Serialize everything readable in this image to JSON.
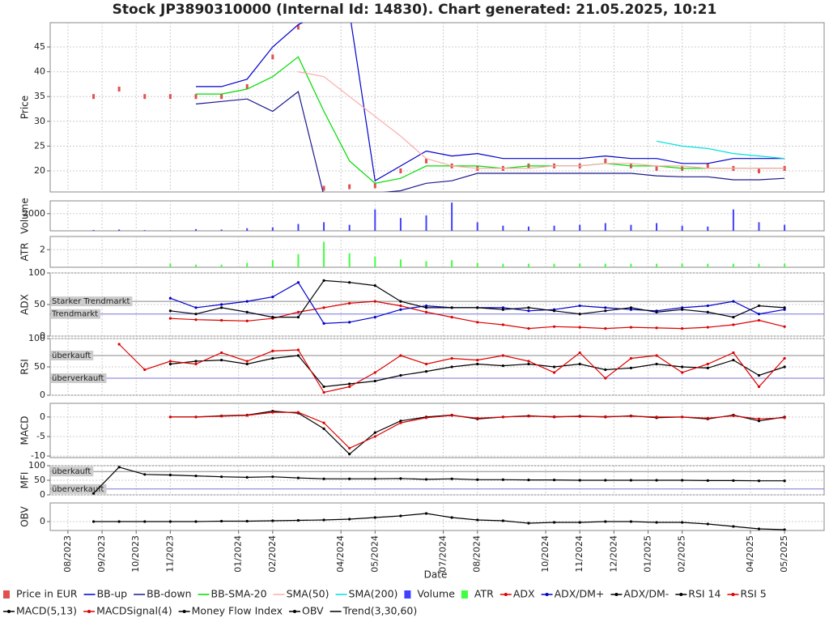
{
  "chart_data": {
    "type": "stock-panels",
    "title": "Stock JP3890310000 (Internal Id: 14830). Chart generated: 21.05.2025, 10:21",
    "x_label": "Date",
    "x": [
      7,
      7.75,
      8.5,
      9.25,
      10,
      10.75,
      11.5,
      12.25,
      13,
      13.75,
      14.5,
      15.25,
      16,
      16.75,
      17.5,
      18.25,
      19,
      19.75,
      20.5,
      21.25,
      22,
      22.75,
      23.5,
      24.25,
      25,
      25.75,
      26.5,
      27.25,
      28
    ],
    "xlim": [
      6.48,
      29.16
    ],
    "xticks": [
      {
        "value": 7,
        "label": "08/2023"
      },
      {
        "value": 8,
        "label": "09/2023"
      },
      {
        "value": 9,
        "label": "10/2023"
      },
      {
        "value": 10,
        "label": "11/2023"
      },
      {
        "value": 12,
        "label": "01/2024"
      },
      {
        "value": 13,
        "label": "02/2024"
      },
      {
        "value": 15,
        "label": "04/2024"
      },
      {
        "value": 16,
        "label": "05/2024"
      },
      {
        "value": 18,
        "label": "07/2024"
      },
      {
        "value": 19,
        "label": "08/2024"
      },
      {
        "value": 21,
        "label": "10/2024"
      },
      {
        "value": 22,
        "label": "11/2024"
      },
      {
        "value": 23,
        "label": "12/2024"
      },
      {
        "value": 24,
        "label": "01/2025"
      },
      {
        "value": 25,
        "label": "02/2025"
      },
      {
        "value": 27,
        "label": "04/2025"
      },
      {
        "value": 28,
        "label": "05/2025"
      }
    ],
    "grid": true,
    "panels": [
      {
        "y_label": "Price",
        "ylim": [
          15.75,
          49.9
        ],
        "yticks": [
          20,
          25,
          30,
          35,
          40,
          45
        ],
        "series": [
          {
            "name": "Price in EUR",
            "type": "scatter",
            "color": "#e05050",
            "values": [
              null,
              35,
              36.5,
              35,
              35,
              35,
              35,
              37,
              43,
              49,
              16.5,
              16.8,
              17,
              20,
              22,
              21,
              20.5,
              20.5,
              21,
              21,
              21,
              22,
              21,
              20.5,
              20.5,
              21,
              20.5,
              20,
              20.5
            ]
          },
          {
            "name": "BB-up",
            "type": "line",
            "color": "#0000cc",
            "values": [
              null,
              null,
              null,
              null,
              null,
              37,
              37,
              38.5,
              45,
              49.5,
              52,
              52,
              18,
              21,
              24,
              23,
              23.5,
              22.5,
              22.5,
              22.5,
              22.5,
              23,
              22.5,
              22.5,
              21.5,
              21.5,
              22.5,
              22.5,
              22.5
            ]
          },
          {
            "name": "BB-down",
            "type": "line",
            "color": "#1a1a8c",
            "values": [
              null,
              null,
              null,
              null,
              null,
              33.5,
              34,
              34.5,
              32,
              36,
              15,
              12,
              15.5,
              16,
              17.5,
              18,
              19.5,
              19.5,
              19.5,
              19.5,
              19.5,
              19.5,
              19.5,
              19,
              18.8,
              18.8,
              18.2,
              18.2,
              18.5
            ]
          },
          {
            "name": "BB-SMA-20",
            "type": "line",
            "color": "#00dd00",
            "values": [
              null,
              null,
              null,
              null,
              null,
              35.5,
              35.5,
              36.5,
              39,
              43,
              32,
              22,
              17.5,
              18.5,
              21,
              21,
              21,
              20.5,
              21,
              21,
              21,
              21.5,
              21,
              21,
              20.5,
              20.5,
              20.5,
              20.5,
              20.5
            ]
          },
          {
            "name": "SMA(50)",
            "type": "line",
            "color": "#ffaaaa",
            "values": [
              null,
              null,
              null,
              null,
              null,
              null,
              null,
              null,
              null,
              40,
              39,
              35,
              31,
              27,
              22.5,
              21,
              20.5,
              20.5,
              20.5,
              21,
              21,
              21.5,
              21.5,
              21,
              21,
              20.5,
              20.5,
              20.5,
              20.5
            ]
          },
          {
            "name": "SMA(200)",
            "type": "line",
            "color": "#00e0e0",
            "values": [
              null,
              null,
              null,
              null,
              null,
              null,
              null,
              null,
              null,
              null,
              null,
              null,
              null,
              null,
              null,
              null,
              null,
              null,
              null,
              null,
              null,
              null,
              null,
              26,
              25,
              24.5,
              23.5,
              23,
              22.5
            ]
          }
        ]
      },
      {
        "y_label": "Volume",
        "ylim": [
          0,
          3500
        ],
        "yticks": [
          2000
        ],
        "series": [
          {
            "name": "Volume",
            "type": "bar",
            "color": "#4040ff",
            "values": [
              null,
              100,
              150,
              80,
              50,
              200,
              150,
              300,
              400,
              800,
              1000,
              700,
              2500,
              1500,
              1800,
              3300,
              1000,
              600,
              500,
              600,
              700,
              900,
              700,
              900,
              600,
              500,
              2500,
              1000,
              700
            ]
          }
        ]
      },
      {
        "y_label": "ATR",
        "ylim": [
          0,
          3.5
        ],
        "yticks": [
          2
        ],
        "series": [
          {
            "name": "ATR",
            "type": "bar",
            "color": "#40ff40",
            "values": [
              null,
              null,
              null,
              null,
              0.4,
              0.3,
              0.3,
              0.5,
              0.8,
              1.5,
              2.9,
              1.6,
              1.2,
              0.9,
              0.7,
              0.8,
              0.5,
              0.4,
              0.4,
              0.4,
              0.4,
              0.4,
              0.4,
              0.4,
              0.4,
              0.4,
              0.4,
              0.4,
              0.4
            ]
          }
        ]
      },
      {
        "y_label": "ADX",
        "ylim": [
          0,
          100
        ],
        "yticks": [
          0,
          50,
          100
        ],
        "ref_lines": [
          {
            "value": 55,
            "label": "Starker Trendmarkt"
          },
          {
            "value": 35,
            "label": "Trendmarkt"
          }
        ],
        "series": [
          {
            "name": "ADX",
            "type": "line",
            "markers": true,
            "color": "#dd0000",
            "values": [
              null,
              null,
              null,
              null,
              28,
              26,
              25,
              24,
              28,
              38,
              45,
              52,
              55,
              48,
              38,
              30,
              22,
              18,
              12,
              15,
              14,
              12,
              14,
              13,
              12,
              14,
              18,
              25,
              15
            ]
          },
          {
            "name": "ADX/DM+",
            "type": "line",
            "markers": true,
            "color": "#0000cc",
            "values": [
              null,
              null,
              null,
              null,
              60,
              45,
              50,
              55,
              62,
              85,
              20,
              22,
              30,
              42,
              48,
              45,
              45,
              45,
              40,
              42,
              48,
              45,
              42,
              40,
              45,
              48,
              55,
              35,
              42
            ]
          },
          {
            "name": "ADX/DM-",
            "type": "line",
            "markers": true,
            "color": "#000000",
            "values": [
              null,
              null,
              null,
              null,
              40,
              35,
              45,
              38,
              30,
              30,
              88,
              85,
              80,
              55,
              45,
              45,
              45,
              42,
              45,
              40,
              35,
              40,
              45,
              38,
              42,
              38,
              30,
              48,
              45
            ]
          }
        ]
      },
      {
        "y_label": "RSI",
        "ylim": [
          0,
          100
        ],
        "yticks": [
          0,
          50,
          100
        ],
        "ref_lines": [
          {
            "value": 70,
            "label": "überkauft"
          },
          {
            "value": 30,
            "label": "überverkauft"
          }
        ],
        "series": [
          {
            "name": "RSI 14",
            "type": "line",
            "markers": true,
            "color": "#000000",
            "values": [
              null,
              null,
              null,
              null,
              55,
              60,
              62,
              55,
              65,
              70,
              15,
              20,
              25,
              35,
              42,
              50,
              55,
              52,
              55,
              50,
              55,
              45,
              48,
              55,
              50,
              48,
              62,
              35,
              50
            ]
          },
          {
            "name": "RSI 5",
            "type": "line",
            "markers": true,
            "color": "#dd0000",
            "values": [
              null,
              null,
              90,
              45,
              60,
              55,
              75,
              60,
              78,
              80,
              5,
              15,
              40,
              70,
              55,
              65,
              62,
              70,
              60,
              40,
              75,
              30,
              65,
              70,
              40,
              55,
              75,
              15,
              65
            ]
          }
        ]
      },
      {
        "y_label": "MACD",
        "ylim": [
          -10.4,
          3.5
        ],
        "yticks": [
          -10,
          -5,
          0
        ],
        "series": [
          {
            "name": "MACD(5,13)",
            "type": "line",
            "markers": true,
            "color": "#000000",
            "values": [
              null,
              null,
              null,
              null,
              0,
              0,
              0.3,
              0.5,
              1.5,
              1,
              -3,
              -9.5,
              -4,
              -1,
              0,
              0.5,
              -0.5,
              0,
              0.3,
              0,
              0.2,
              0,
              0.3,
              -0.2,
              0,
              -0.5,
              0.5,
              -1,
              0
            ]
          },
          {
            "name": "MACDSignal(4)",
            "type": "line",
            "markers": true,
            "color": "#dd0000",
            "values": [
              null,
              null,
              null,
              null,
              0,
              0,
              0.2,
              0.4,
              1.2,
              1.2,
              -1.5,
              -8,
              -5,
              -1.5,
              -0.2,
              0.4,
              -0.3,
              0,
              0.2,
              0.1,
              0.1,
              0.1,
              0.2,
              0,
              0,
              -0.3,
              0.3,
              -0.5,
              -0.2
            ]
          }
        ]
      },
      {
        "y_label": "MFI",
        "ylim": [
          0,
          100
        ],
        "yticks": [
          0,
          50,
          100
        ],
        "ref_lines": [
          {
            "value": 80,
            "label": "überkauft"
          },
          {
            "value": 20,
            "label": "überverkauft"
          }
        ],
        "series": [
          {
            "name": "Money Flow Index",
            "type": "line",
            "markers": true,
            "color": "#000000",
            "values": [
              null,
              5,
              95,
              70,
              68,
              65,
              62,
              60,
              62,
              58,
              55,
              55,
              55,
              56,
              53,
              55,
              52,
              52,
              51,
              51,
              50,
              50,
              50,
              50,
              50,
              49,
              49,
              48,
              48
            ]
          }
        ]
      },
      {
        "y_label": "OBV",
        "ylim": [
          -1.1,
          2.3
        ],
        "yticks": [
          0
        ],
        "series": [
          {
            "name": "OBV",
            "type": "line",
            "markers": true,
            "color": "#000000",
            "values": [
              null,
              0,
              0,
              0,
              0,
              0,
              0.05,
              0.05,
              0.1,
              0.15,
              0.2,
              0.3,
              0.5,
              0.7,
              1.0,
              0.5,
              0.2,
              0.1,
              -0.2,
              -0.1,
              -0.1,
              0,
              0,
              -0.1,
              -0.1,
              -0.3,
              -0.6,
              -0.9,
              -1.0
            ]
          },
          {
            "name": "Trend(3,30,60)",
            "type": "line",
            "color": "#000000",
            "values": [
              null,
              null,
              null,
              null,
              null,
              null,
              null,
              null,
              null,
              null,
              null,
              null,
              null,
              null,
              null,
              null,
              null,
              null,
              null,
              null,
              null,
              null,
              null,
              null,
              null,
              null,
              null,
              null,
              null
            ]
          }
        ]
      }
    ]
  }
}
